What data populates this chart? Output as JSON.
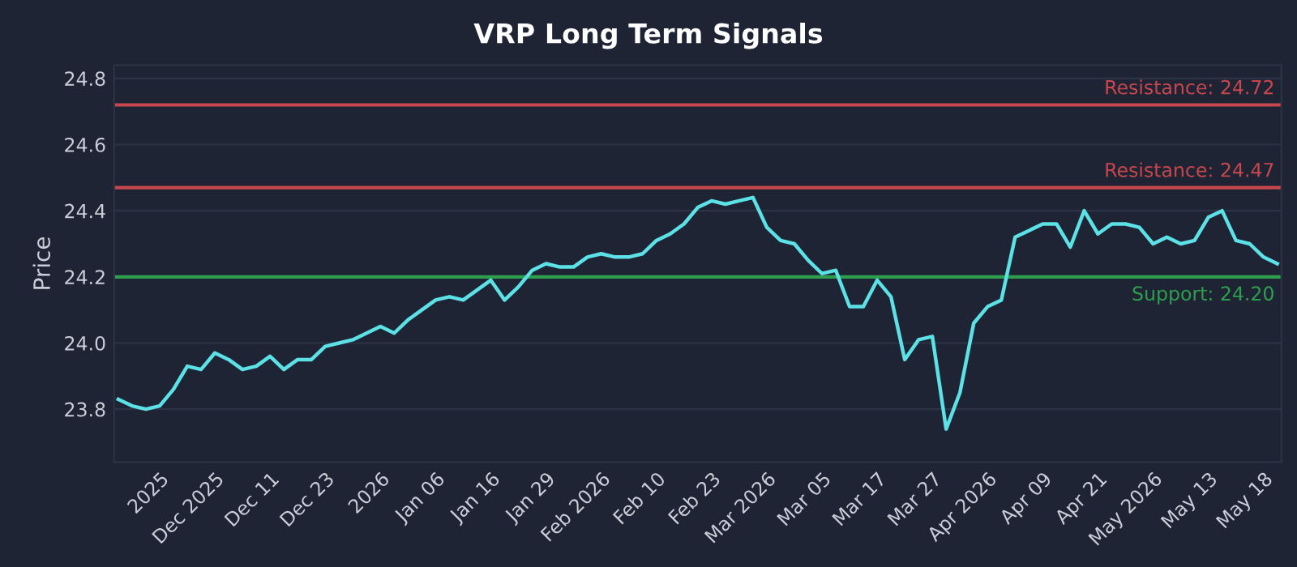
{
  "chart_data": {
    "type": "line",
    "title": "VRP Long Term Signals",
    "ylabel": "Price",
    "categories": [
      null,
      null,
      null,
      "2025",
      null,
      null,
      null,
      "Dec 2025",
      null,
      null,
      null,
      "Dec 11",
      null,
      null,
      null,
      "Dec 23",
      null,
      null,
      null,
      "2026",
      null,
      null,
      null,
      "Jan 06",
      null,
      null,
      null,
      "Jan 16",
      null,
      null,
      null,
      "Jan 29",
      null,
      null,
      null,
      "Feb 2026",
      null,
      null,
      null,
      "Feb 10",
      null,
      null,
      null,
      "Feb 23",
      null,
      null,
      null,
      "Mar 2026",
      null,
      null,
      null,
      "Mar 05",
      null,
      null,
      null,
      "Mar 17",
      null,
      null,
      null,
      "Mar 27",
      null,
      null,
      null,
      "Apr 2026",
      null,
      null,
      null,
      "Apr 09",
      null,
      null,
      null,
      "Apr 21",
      null,
      null,
      null,
      "May 2026",
      null,
      null,
      null,
      "May 13",
      null,
      null,
      null,
      "May 18",
      null
    ],
    "series": [
      {
        "color": "#5ce1e6",
        "values": [
          23.83,
          23.81,
          23.8,
          23.81,
          23.86,
          23.93,
          23.92,
          23.97,
          23.95,
          23.92,
          23.93,
          23.96,
          23.92,
          23.95,
          23.95,
          23.99,
          24.0,
          24.01,
          24.03,
          24.05,
          24.03,
          24.07,
          24.1,
          24.13,
          24.14,
          24.13,
          24.16,
          24.19,
          24.13,
          24.17,
          24.22,
          24.24,
          24.23,
          24.23,
          24.26,
          24.27,
          24.26,
          24.26,
          24.27,
          24.31,
          24.33,
          24.36,
          24.41,
          24.43,
          24.42,
          24.43,
          24.44,
          24.35,
          24.31,
          24.3,
          24.25,
          24.21,
          24.22,
          24.11,
          24.11,
          24.19,
          24.14,
          23.95,
          24.01,
          24.02,
          23.74,
          23.85,
          24.06,
          24.11,
          24.13,
          24.32,
          24.34,
          24.36,
          24.36,
          24.29,
          24.4,
          24.33,
          24.36,
          24.36,
          24.35,
          24.3,
          24.32,
          24.3,
          24.31,
          24.38,
          24.4,
          24.31,
          24.3,
          24.26,
          24.24
        ]
      }
    ],
    "ylim": [
      23.64,
      24.84
    ],
    "yticks": [
      23.8,
      {
        "value": 24,
        "label": "24.0"
      },
      24.2,
      24.4,
      24.6,
      24.8
    ],
    "grid": "y",
    "legend": false,
    "marker": "none",
    "line_style": "solid",
    "ref_lines": [
      {
        "axis": "y",
        "value": 24.72,
        "label": "Resistance: 24.72",
        "color": "#c8474f"
      },
      {
        "axis": "y",
        "value": 24.47,
        "label": "Resistance: 24.47",
        "color": "#c8474f"
      },
      {
        "axis": "y",
        "value": 24.2,
        "label": "Support: 24.20",
        "color": "#2e9e4f"
      }
    ]
  }
}
